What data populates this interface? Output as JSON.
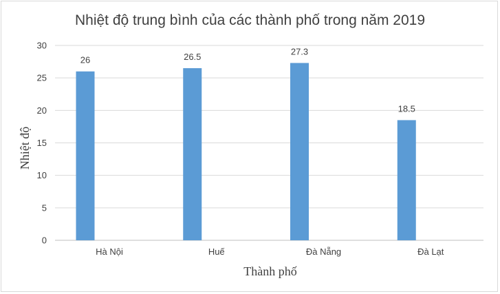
{
  "chart_data": {
    "type": "bar",
    "title": "Nhiệt độ trung bình của các thành phố trong năm 2019",
    "xlabel": "Thành phố",
    "ylabel": "Nhiệt độ",
    "categories": [
      "Hà Nội",
      "Huế",
      "Đà Nẵng",
      "Đà Lạt"
    ],
    "values": [
      26,
      26.5,
      27.3,
      18.5
    ],
    "data_labels": [
      "26",
      "26.5",
      "27.3",
      "18.5"
    ],
    "ylim": [
      0,
      30
    ],
    "yticks": [
      0,
      5,
      10,
      15,
      20,
      25,
      30
    ],
    "grid": true,
    "legend": "none",
    "colors": {
      "bar": "#5b9bd5",
      "grid": "#d9d9d9",
      "axis": "#bfbfbf",
      "text": "#404040"
    }
  }
}
